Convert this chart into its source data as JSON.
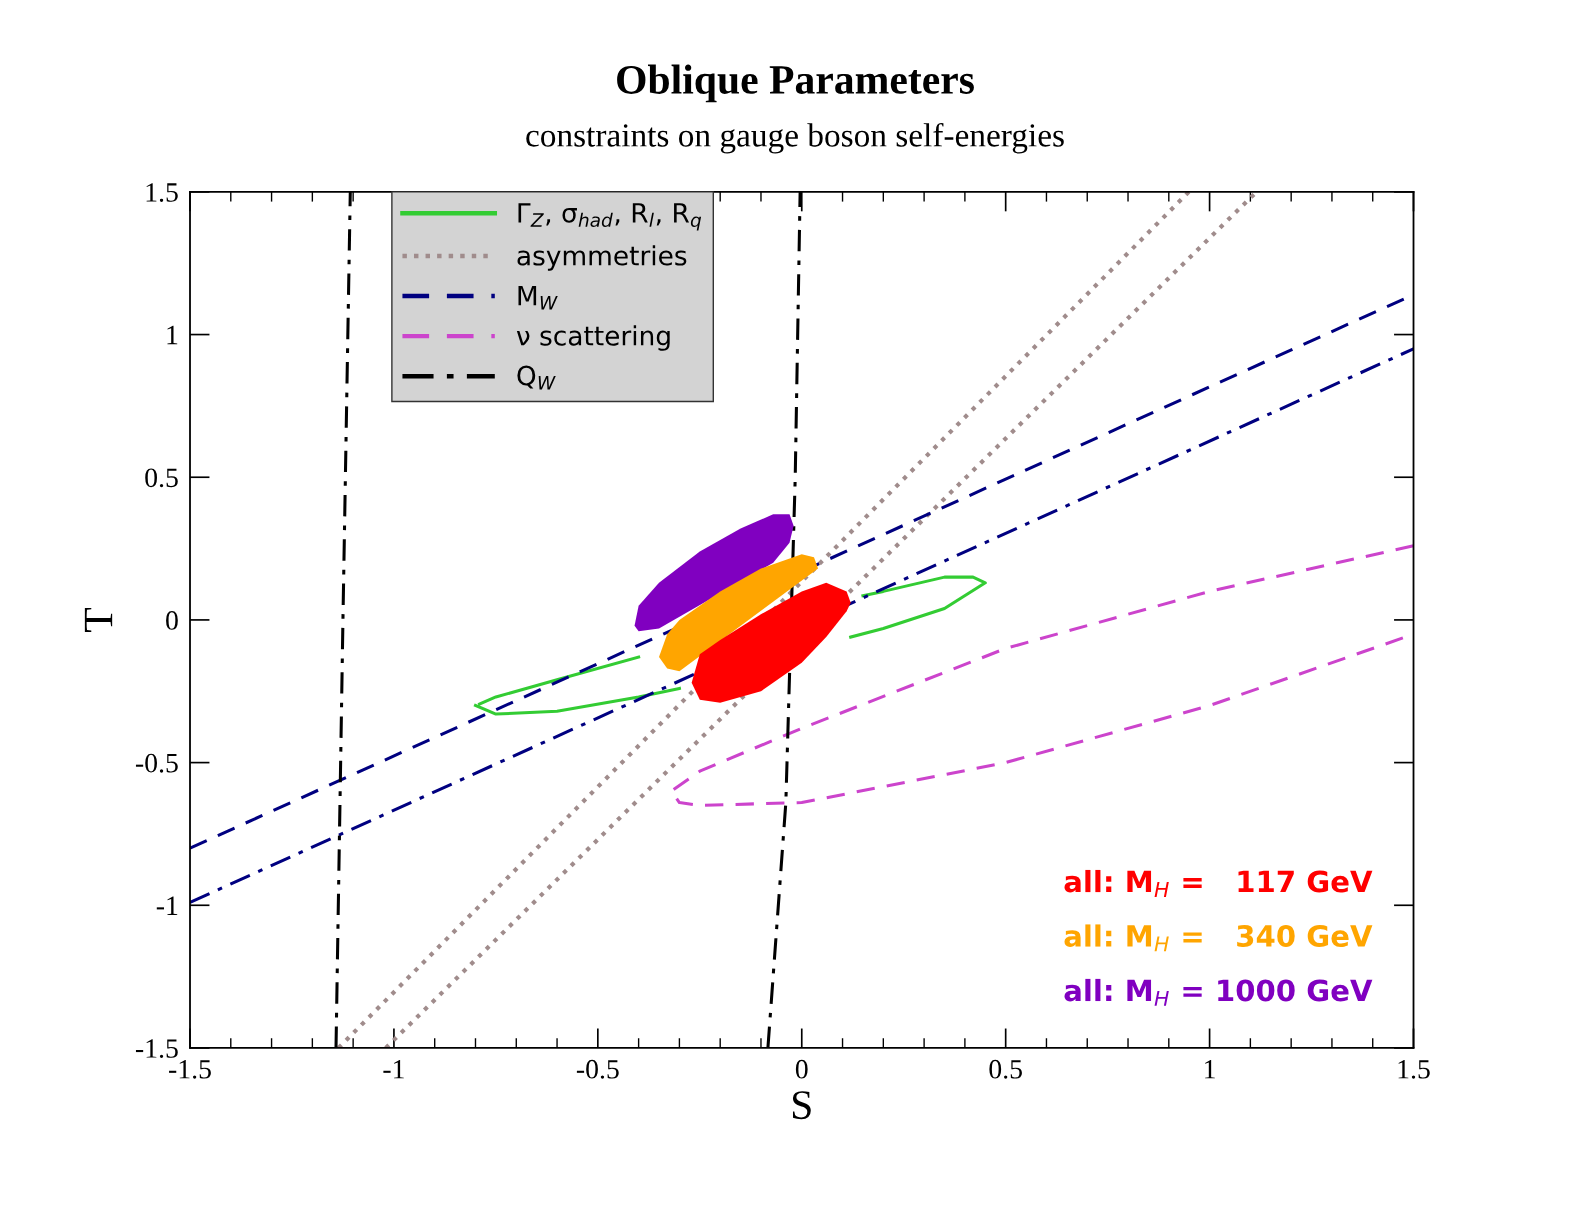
{
  "chart_data": {
    "type": "line",
    "title": "Oblique Parameters",
    "subtitle": "constraints on gauge boson self-energies",
    "xlabel": "S",
    "ylabel": "T",
    "xlim": [
      -1.5,
      1.5
    ],
    "ylim": [
      -1.5,
      1.5
    ],
    "xticks": [
      -1.5,
      -1,
      -0.5,
      0,
      0.5,
      1,
      1.5
    ],
    "yticks": [
      -1.5,
      -1,
      -0.5,
      0,
      0.5,
      1,
      1.5
    ],
    "grid": false,
    "legend": "top left",
    "series": [
      {
        "name": "Γ$_{Z}$, σ$_{had}$, R$_{l}$, R$_{q}$",
        "line_style": "solid",
        "color": "#33cc33",
        "x": [
          -0.8,
          -0.75,
          -0.6,
          -0.4,
          -0.3,
          -0.2,
          0.0,
          0.12,
          0.2,
          0.35,
          0.45,
          0.42,
          0.35,
          0.2,
          0.15,
          0.0,
          -0.2,
          -0.4,
          -0.6,
          -0.75,
          -0.79
        ],
        "values": [
          -0.3,
          -0.33,
          -0.32,
          -0.27,
          -0.24,
          null,
          null,
          -0.06,
          -0.03,
          0.04,
          0.13,
          0.15,
          0.15,
          0.1,
          0.085,
          null,
          null,
          -0.13,
          -0.21,
          -0.27,
          -0.295
        ]
      },
      {
        "name": "asymmetries",
        "line_style": "dotted",
        "color": "#a08c8c",
        "x": [
          -1.136,
          0.949
        ],
        "values": [
          -1.5,
          1.5
        ]
      },
      {
        "line_style": "dotted",
        "color": "#a08c8c",
        "x": [
          -1.02,
          1.115
        ],
        "values": [
          -1.5,
          1.5
        ]
      },
      {
        "name": "M$_{W}$",
        "line_style": "dashed",
        "color": "#000080",
        "x": [
          -1.5,
          1.5
        ],
        "values": [
          -0.8,
          1.14
        ]
      },
      {
        "line_style": "dashdot",
        "color": "#000080",
        "x": [
          -1.5,
          1.5
        ],
        "values": [
          -0.99,
          0.95
        ]
      },
      {
        "name": "ν scattering",
        "line_style": "dashed",
        "color": "#cc44cc",
        "x": [
          1.5,
          1.0,
          0.5,
          0.0,
          -0.25,
          -0.32,
          -0.3,
          -0.25,
          0.0,
          0.5,
          1.0,
          1.5
        ],
        "values": [
          0.26,
          0.1,
          -0.1,
          -0.38,
          -0.53,
          -0.6,
          -0.64,
          -0.65,
          -0.64,
          -0.5,
          -0.3,
          -0.05
        ]
      },
      {
        "name": "Q$_{W}$",
        "line_style": "dashdot",
        "color": "#000000",
        "x": [
          -1.142,
          -1.125,
          -1.107
        ],
        "values": [
          -1.5,
          0.0,
          1.5
        ]
      },
      {
        "line_style": "dashdot",
        "color": "#000000",
        "x": [
          -0.083,
          -0.039,
          -0.016,
          -0.004
        ],
        "values": [
          -1.5,
          -0.64,
          0.5,
          1.5
        ]
      },
      {
        "name": "all: M$_{H}$ = 1000 GeV",
        "type": "area",
        "color": "#8000c0",
        "x": [
          -0.41,
          -0.4,
          -0.35,
          -0.07,
          -0.03,
          -0.02,
          -0.03,
          -0.07,
          -0.15,
          -0.25,
          -0.35,
          -0.4
        ],
        "values": [
          -0.02,
          -0.04,
          -0.03,
          0.2,
          0.27,
          0.33,
          0.37,
          0.37,
          0.32,
          0.24,
          0.13,
          0.05
        ]
      },
      {
        "name": "all: M$_{H}$ =   340 GeV",
        "type": "area",
        "color": "#ffa500",
        "x": [
          -0.35,
          -0.33,
          -0.3,
          0.04,
          0.03,
          0.0,
          -0.1,
          -0.2,
          -0.3,
          -0.33
        ],
        "values": [
          -0.13,
          -0.17,
          -0.18,
          0.18,
          0.22,
          0.23,
          0.18,
          0.1,
          0.0,
          -0.05
        ]
      },
      {
        "name": "all: M$_{H}$ =   117 GeV",
        "type": "area",
        "color": "#ff0000",
        "x": [
          -0.27,
          -0.25,
          -0.2,
          -0.1,
          0.0,
          0.06,
          0.11,
          0.12,
          0.11,
          0.06,
          0.0,
          -0.1,
          -0.2,
          -0.25
        ],
        "values": [
          -0.22,
          -0.28,
          -0.29,
          -0.25,
          -0.15,
          -0.06,
          0.03,
          0.06,
          0.1,
          0.13,
          0.1,
          0.02,
          -0.07,
          -0.12
        ]
      }
    ]
  }
}
